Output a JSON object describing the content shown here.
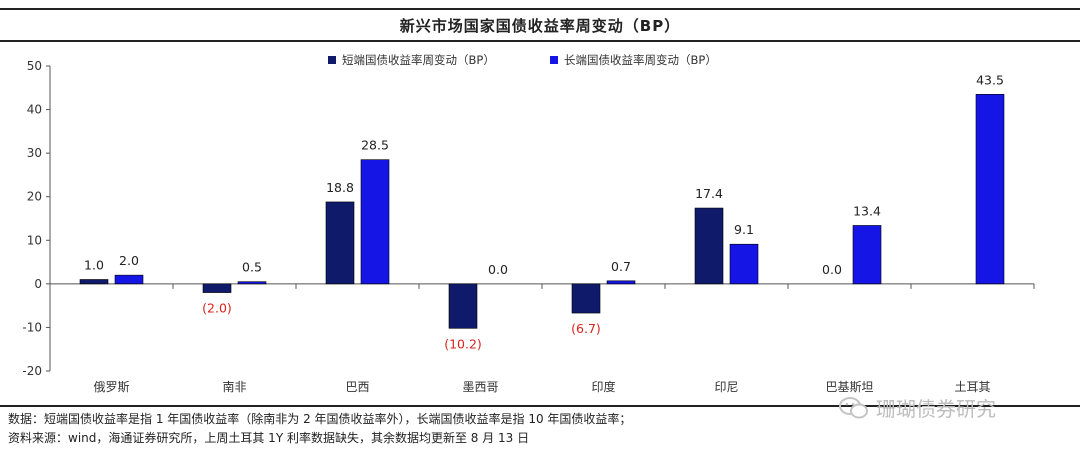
{
  "header": {
    "title": "新兴市场国家国债收益率周变动（BP）"
  },
  "chart_data": {
    "type": "bar",
    "categories": [
      "俄罗斯",
      "南非",
      "巴西",
      "墨西哥",
      "印度",
      "印尼",
      "巴基斯坦",
      "土耳其"
    ],
    "series": [
      {
        "name": "短端国债收益率周变动（BP）",
        "color": "#0f1a6b",
        "values": [
          1.0,
          -2.0,
          18.8,
          -10.2,
          -6.7,
          17.4,
          0.0,
          null
        ],
        "labels": [
          "1.0",
          "(2.0)",
          "18.8",
          "(10.2)",
          "(6.7)",
          "17.4",
          "0.0",
          ""
        ]
      },
      {
        "name": "长端国债收益率周变动（BP）",
        "color": "#1515e6",
        "values": [
          2.0,
          0.5,
          28.5,
          0.0,
          0.7,
          9.1,
          13.4,
          43.5
        ],
        "labels": [
          "2.0",
          "0.5",
          "28.5",
          "0.0",
          "0.7",
          "9.1",
          "13.4",
          "43.5"
        ]
      }
    ],
    "ylim": [
      -20,
      50
    ],
    "yticks": [
      -20,
      -10,
      0,
      10,
      20,
      30,
      40,
      50
    ],
    "negative_label_color": "#d9231e",
    "legend_position": "top-center"
  },
  "footer": {
    "note": "数据：短端国债收益率是指 1 年国债收益率（除南非为 2 年国债收益率外），长端国债收益率是指 10 年国债收益率；",
    "source": "资料来源：wind，海通证券研究所，上周土耳其 1Y 利率数据缺失，其余数据均更新至 8 月 13 日"
  },
  "watermark": {
    "text": "珊瑚债券研究",
    "icon": "wechat-icon"
  }
}
